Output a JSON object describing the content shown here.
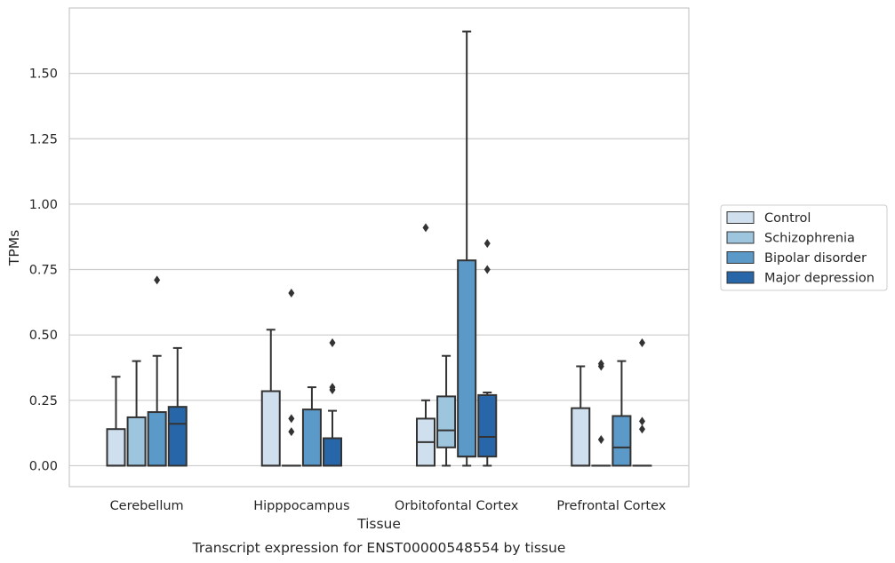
{
  "chart_data": {
    "type": "box",
    "caption": "Transcript expression for ENST00000548554 by tissue",
    "xlabel": "Tissue",
    "ylabel": "TPMs",
    "ylim": [
      -0.08,
      1.75
    ],
    "yticks": [
      0.0,
      0.25,
      0.5,
      0.75,
      1.0,
      1.25,
      1.5
    ],
    "ytick_labels": [
      "0.00",
      "0.25",
      "0.50",
      "0.75",
      "1.00",
      "1.25",
      "1.50"
    ],
    "grid": "horizontal",
    "legend_position": "right",
    "categories": [
      "Cerebellum",
      "Hipppocampus",
      "Orbitofontal Cortex",
      "Prefrontal Cortex"
    ],
    "series": [
      {
        "name": "Control",
        "color": "#cfdfee",
        "boxes": [
          {
            "min": 0,
            "q1": 0,
            "median": 0,
            "q3": 0.14,
            "max": 0.34,
            "outliers": []
          },
          {
            "min": 0,
            "q1": 0,
            "median": 0,
            "q3": 0.285,
            "max": 0.52,
            "outliers": []
          },
          {
            "min": 0,
            "q1": 0,
            "median": 0.09,
            "q3": 0.18,
            "max": 0.25,
            "outliers": [
              0.91
            ]
          },
          {
            "min": 0,
            "q1": 0,
            "median": 0,
            "q3": 0.22,
            "max": 0.38,
            "outliers": []
          }
        ]
      },
      {
        "name": "Schizophrenia",
        "color": "#9dc5de",
        "boxes": [
          {
            "min": 0,
            "q1": 0,
            "median": 0,
            "q3": 0.185,
            "max": 0.4,
            "outliers": []
          },
          {
            "min": 0,
            "q1": 0,
            "median": 0,
            "q3": 0,
            "max": 0,
            "outliers": [
              0.13,
              0.18,
              0.66
            ]
          },
          {
            "min": 0,
            "q1": 0.07,
            "median": 0.135,
            "q3": 0.265,
            "max": 0.42,
            "outliers": []
          },
          {
            "min": 0,
            "q1": 0,
            "median": 0,
            "q3": 0,
            "max": 0,
            "outliers": [
              0.1,
              0.38,
              0.39
            ]
          }
        ]
      },
      {
        "name": "Bipolar disorder",
        "color": "#5b9ac8",
        "boxes": [
          {
            "min": 0,
            "q1": 0,
            "median": 0,
            "q3": 0.205,
            "max": 0.42,
            "outliers": [
              0.71
            ]
          },
          {
            "min": 0,
            "q1": 0,
            "median": 0,
            "q3": 0.215,
            "max": 0.3,
            "outliers": []
          },
          {
            "min": 0,
            "q1": 0.035,
            "median": 0.035,
            "q3": 0.785,
            "max": 1.66,
            "outliers": []
          },
          {
            "min": 0,
            "q1": 0,
            "median": 0.07,
            "q3": 0.19,
            "max": 0.4,
            "outliers": []
          }
        ]
      },
      {
        "name": "Major depression",
        "color": "#2767a9",
        "boxes": [
          {
            "min": 0,
            "q1": 0,
            "median": 0.16,
            "q3": 0.225,
            "max": 0.45,
            "outliers": []
          },
          {
            "min": 0,
            "q1": 0,
            "median": 0,
            "q3": 0.105,
            "max": 0.21,
            "outliers": [
              0.29,
              0.3,
              0.47
            ]
          },
          {
            "min": 0,
            "q1": 0.035,
            "median": 0.11,
            "q3": 0.27,
            "max": 0.28,
            "outliers": [
              0.75,
              0.85
            ]
          },
          {
            "min": 0,
            "q1": 0,
            "median": 0,
            "q3": 0,
            "max": 0,
            "outliers": [
              0.14,
              0.17,
              0.47
            ]
          }
        ]
      }
    ]
  }
}
